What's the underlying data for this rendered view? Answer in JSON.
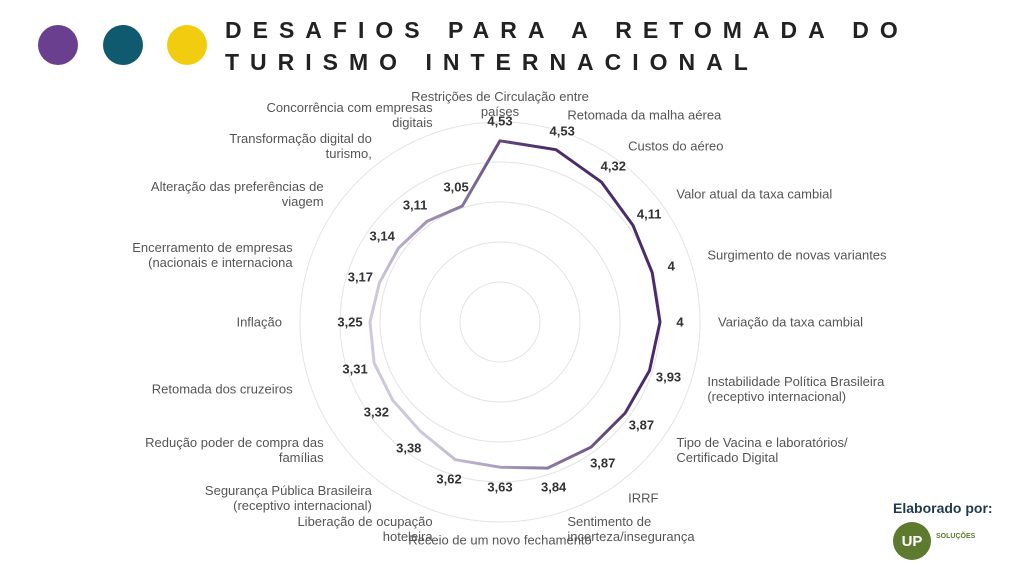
{
  "header": {
    "title": "DESAFIOS PARA A RETOMADA DO TURISMO INTERNACIONAL"
  },
  "chart_data": {
    "type": "radar",
    "categories": [
      "Restrições de Circulação entre\npaíses",
      "Retomada da malha aérea",
      "Custos do aéreo",
      "Valor atual da taxa cambial",
      "Surgimento de novas variantes",
      "Variação da taxa cambial",
      "Instabilidade Política Brasileira\n(receptivo internacional)",
      "Tipo de Vacina e laboratórios/\nCertificado Digital",
      "IRRF",
      "Sentimento de\nincerteza/insegurança",
      "Receio de um novo fechamento",
      "Liberação de ocupação\nhoteleira",
      "Segurança Pública Brasileira\n(receptivo internacional)",
      "Redução poder de compra das\nfamílias",
      "Retomada dos cruzeiros",
      "Inflação",
      "Encerramento de empresas\n(nacionais e internaciona",
      "Alteração das preferências de\nviagem",
      "Transformação digital do\nturismo,",
      "Concorrência com empresas\ndigitais"
    ],
    "values": [
      4.53,
      4.53,
      4.32,
      4.11,
      4,
      4,
      3.93,
      3.87,
      3.87,
      3.84,
      3.63,
      3.62,
      3.38,
      3.32,
      3.31,
      3.25,
      3.17,
      3.14,
      3.11,
      3.05
    ],
    "value_labels": [
      "4,53",
      "4,53",
      "4,32",
      "4,11",
      "4",
      "4",
      "3,93",
      "3,87",
      "3,87",
      "3,84",
      "3,63",
      "3,62",
      "3,38",
      "3,32",
      "3,31",
      "3,25",
      "3,17",
      "3,14",
      "3,11",
      "3,05"
    ],
    "color": "#4a2c6b",
    "color_end": "#cfc8d9",
    "rlim": [
      0,
      5
    ],
    "rticks": [
      1,
      2,
      3,
      4,
      5
    ],
    "grid": true
  },
  "footer": {
    "label": "Elaborado por:",
    "logo": "UP",
    "logo_text": "SOLUÇÕES"
  }
}
